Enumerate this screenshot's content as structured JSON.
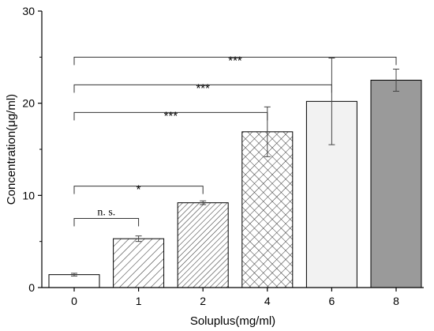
{
  "chart_data": {
    "type": "bar",
    "xlabel": "Soluplus(mg/ml)",
    "ylabel": "Concentration(μg/ml)",
    "ylim": [
      0,
      30
    ],
    "yticks": [
      0,
      10,
      20,
      30
    ],
    "grid": false,
    "categories": [
      "0",
      "1",
      "2",
      "4",
      "6",
      "8"
    ],
    "values": [
      1.4,
      5.3,
      9.2,
      16.9,
      20.2,
      22.5
    ],
    "errors": [
      0.15,
      0.3,
      0.2,
      2.7,
      4.7,
      1.2
    ],
    "bar_styles": [
      "white",
      "diagonal",
      "diagonal-dense",
      "crosshatch",
      "light-gray",
      "gray"
    ],
    "bar_colors": {
      "white": "#ffffff",
      "light-gray": "#f2f2f2",
      "gray": "#9a9a9a",
      "hatch": "#333333",
      "outline": "#000000"
    },
    "significance": [
      {
        "from": "0",
        "to": "1",
        "label": "n. s.",
        "y": 7.5
      },
      {
        "from": "0",
        "to": "2",
        "label": "*",
        "y": 11.0
      },
      {
        "from": "0",
        "to": "4",
        "label": "***",
        "y": 19.0
      },
      {
        "from": "0",
        "to": "6",
        "label": "***",
        "y": 22.0
      },
      {
        "from": "0",
        "to": "8",
        "label": "***",
        "y": 25.0
      }
    ]
  }
}
